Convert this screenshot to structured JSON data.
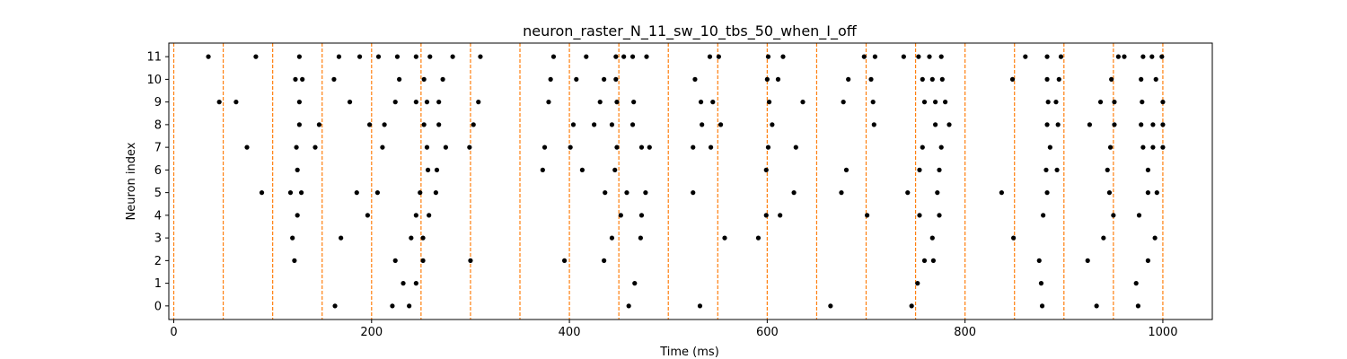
{
  "chart_data": {
    "type": "scatter",
    "title": "neuron_raster_N_11_sw_10_tbs_50_when_I_off",
    "xlabel": "Time (ms)",
    "ylabel": "Neuron index",
    "xlim": [
      -5,
      1050
    ],
    "ylim": [
      -0.6,
      11.6
    ],
    "xticks": [
      0,
      200,
      400,
      600,
      800,
      1000
    ],
    "yticks": [
      0,
      1,
      2,
      3,
      4,
      5,
      6,
      7,
      8,
      9,
      10,
      11
    ],
    "grid": false,
    "vlines": [
      0,
      50,
      100,
      150,
      200,
      250,
      300,
      350,
      400,
      450,
      500,
      550,
      600,
      650,
      700,
      750,
      800,
      850,
      900,
      950,
      1000
    ],
    "vline_color": "#ff7f0e",
    "point_color": "#000000",
    "spikes": [
      {
        "neuron": 0,
        "times": [
          163,
          221,
          238,
          460,
          532,
          664,
          746,
          878,
          933,
          975
        ]
      },
      {
        "neuron": 1,
        "times": [
          232,
          245,
          466,
          752,
          877,
          973
        ]
      },
      {
        "neuron": 2,
        "times": [
          122,
          224,
          252,
          300,
          395,
          435,
          759,
          768,
          875,
          924,
          985
        ]
      },
      {
        "neuron": 3,
        "times": [
          120,
          169,
          240,
          252,
          443,
          472,
          557,
          591,
          767,
          849,
          940,
          992
        ]
      },
      {
        "neuron": 4,
        "times": [
          125,
          196,
          245,
          258,
          452,
          473,
          599,
          613,
          701,
          754,
          774,
          879,
          950,
          976
        ]
      },
      {
        "neuron": 5,
        "times": [
          89,
          118,
          129,
          185,
          206,
          249,
          265,
          436,
          458,
          477,
          525,
          627,
          675,
          742,
          772,
          837,
          883,
          946,
          985,
          994
        ]
      },
      {
        "neuron": 6,
        "times": [
          125,
          257,
          266,
          373,
          413,
          446,
          599,
          680,
          754,
          774,
          882,
          893,
          944,
          985
        ]
      },
      {
        "neuron": 7,
        "times": [
          74,
          124,
          143,
          211,
          256,
          275,
          299,
          375,
          401,
          448,
          473,
          481,
          525,
          543,
          601,
          629,
          757,
          776,
          886,
          947,
          980,
          990,
          1000
        ]
      },
      {
        "neuron": 8,
        "times": [
          127,
          147,
          198,
          213,
          253,
          268,
          303,
          404,
          425,
          443,
          464,
          534,
          553,
          605,
          708,
          770,
          784,
          883,
          894,
          926,
          951,
          978,
          990,
          1000
        ]
      },
      {
        "neuron": 9,
        "times": [
          46,
          63,
          127,
          178,
          224,
          245,
          256,
          268,
          308,
          379,
          431,
          448,
          465,
          533,
          545,
          602,
          636,
          677,
          707,
          759,
          770,
          780,
          884,
          892,
          937,
          951,
          979,
          1000
        ]
      },
      {
        "neuron": 10,
        "times": [
          123,
          130,
          162,
          228,
          253,
          272,
          381,
          407,
          435,
          447,
          527,
          600,
          611,
          682,
          705,
          757,
          767,
          777,
          848,
          883,
          895,
          948,
          978,
          993
        ]
      },
      {
        "neuron": 11,
        "times": [
          35,
          83,
          127,
          167,
          188,
          207,
          226,
          245,
          259,
          282,
          310,
          384,
          417,
          447,
          455,
          464,
          478,
          542,
          551,
          601,
          616,
          698,
          709,
          738,
          753,
          764,
          776,
          861,
          883,
          897,
          955,
          961,
          980,
          989,
          999
        ]
      }
    ]
  }
}
